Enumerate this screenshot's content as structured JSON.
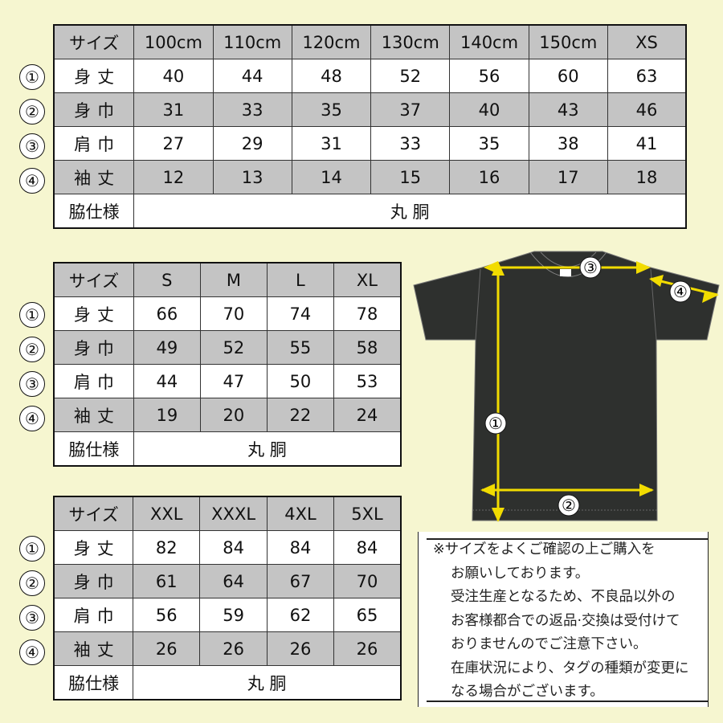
{
  "tables": [
    {
      "header": [
        "サイズ",
        "100cm",
        "110cm",
        "120cm",
        "130cm",
        "140cm",
        "150cm",
        "XS"
      ],
      "rows": [
        {
          "marker": "①",
          "label": "身丈",
          "values": [
            "40",
            "44",
            "48",
            "52",
            "56",
            "60",
            "63"
          ]
        },
        {
          "marker": "②",
          "label": "身巾",
          "values": [
            "31",
            "33",
            "35",
            "37",
            "40",
            "43",
            "46"
          ]
        },
        {
          "marker": "③",
          "label": "肩巾",
          "values": [
            "27",
            "29",
            "31",
            "33",
            "35",
            "38",
            "41"
          ]
        },
        {
          "marker": "④",
          "label": "袖丈",
          "values": [
            "12",
            "13",
            "14",
            "15",
            "16",
            "17",
            "18"
          ]
        }
      ],
      "footer": {
        "label": "脇仕様",
        "value": "丸 胴"
      }
    },
    {
      "header": [
        "サイズ",
        "S",
        "M",
        "L",
        "XL"
      ],
      "rows": [
        {
          "marker": "①",
          "label": "身丈",
          "values": [
            "66",
            "70",
            "74",
            "78"
          ]
        },
        {
          "marker": "②",
          "label": "身巾",
          "values": [
            "49",
            "52",
            "55",
            "58"
          ]
        },
        {
          "marker": "③",
          "label": "肩巾",
          "values": [
            "44",
            "47",
            "50",
            "53"
          ]
        },
        {
          "marker": "④",
          "label": "袖丈",
          "values": [
            "19",
            "20",
            "22",
            "24"
          ]
        }
      ],
      "footer": {
        "label": "脇仕様",
        "value": "丸 胴"
      }
    },
    {
      "header": [
        "サイズ",
        "XXL",
        "XXXL",
        "4XL",
        "5XL"
      ],
      "rows": [
        {
          "marker": "①",
          "label": "身丈",
          "values": [
            "82",
            "84",
            "84",
            "84"
          ]
        },
        {
          "marker": "②",
          "label": "身巾",
          "values": [
            "61",
            "64",
            "67",
            "70"
          ]
        },
        {
          "marker": "③",
          "label": "肩巾",
          "values": [
            "56",
            "59",
            "62",
            "65"
          ]
        },
        {
          "marker": "④",
          "label": "袖丈",
          "values": [
            "26",
            "26",
            "26",
            "26"
          ]
        }
      ],
      "footer": {
        "label": "脇仕様",
        "value": "丸 胴"
      }
    }
  ],
  "diagram": {
    "markers": [
      "①",
      "②",
      "③",
      "④"
    ],
    "shirt_color": "#2e302e",
    "arrow_color": "#f2dc00"
  },
  "notes": {
    "lines": [
      "※サイズをよくご確認の上ご購入を",
      "お願いしております。",
      "受注生産となるため、不良品以外の",
      "お客様都合での返品·交換は受付けて",
      "おりませんのでご注意下さい。",
      "在庫状況により、タグの種類が変更に",
      "なる場合がございます。"
    ]
  }
}
